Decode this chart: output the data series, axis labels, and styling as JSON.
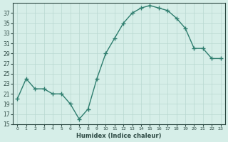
{
  "x": [
    0,
    1,
    2,
    3,
    4,
    5,
    6,
    7,
    8,
    9,
    10,
    11,
    12,
    13,
    14,
    15,
    16,
    17,
    18,
    19,
    20,
    21,
    22,
    23
  ],
  "y": [
    20,
    24,
    22,
    22,
    21,
    21,
    19,
    16,
    18,
    24,
    29,
    32,
    35,
    37,
    38,
    38.5,
    38,
    37.5,
    36,
    34,
    30,
    30,
    28,
    28
  ],
  "xlabel": "Humidex (Indice chaleur)",
  "line_color": "#2e7d6e",
  "bg_color": "#d6eee8",
  "grid_color": "#b8d8d0",
  "text_color": "#2e4a44",
  "ylim": [
    15,
    39
  ],
  "yticks": [
    15,
    17,
    19,
    21,
    23,
    25,
    27,
    29,
    31,
    33,
    35,
    37
  ],
  "xlim": [
    -0.5,
    23.5
  ],
  "xticks": [
    0,
    1,
    2,
    3,
    4,
    5,
    6,
    7,
    8,
    9,
    10,
    11,
    12,
    13,
    14,
    15,
    16,
    17,
    18,
    19,
    20,
    21,
    22,
    23
  ]
}
